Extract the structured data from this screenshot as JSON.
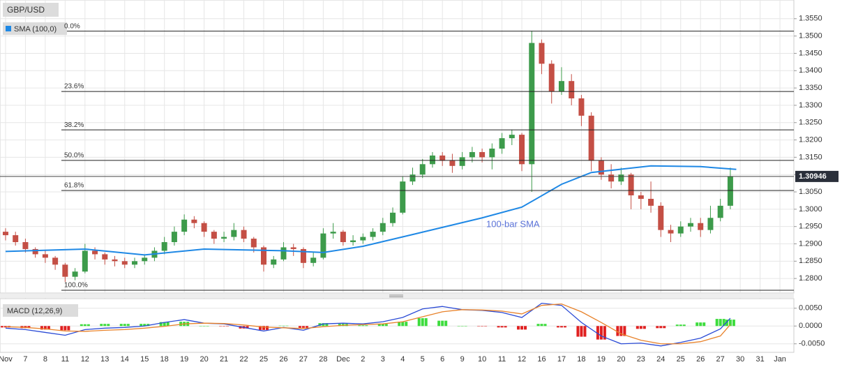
{
  "chart_data": [
    {
      "type": "candlestick",
      "title": "GBP/USD",
      "x": [
        0,
        0.5,
        1,
        1.5,
        2,
        2.5,
        3,
        3.5,
        4,
        4.5,
        5,
        5.5,
        6,
        6.5,
        7,
        7.5,
        8,
        8.5,
        9,
        9.5,
        10,
        10.5,
        11,
        11.5,
        12,
        12.5,
        13,
        13.5,
        14,
        14.5,
        15,
        15.5,
        16,
        16.5,
        17,
        17.5,
        18,
        18.5,
        19,
        19.5,
        20,
        20.5,
        21,
        21.5,
        22,
        22.5,
        23,
        23.5,
        24,
        24.5,
        25,
        25.5,
        26,
        26.5,
        27,
        27.5,
        28,
        28.5,
        29,
        29.5,
        30,
        30.5,
        31,
        31.5,
        32,
        32.5,
        33,
        33.5,
        34,
        34.5,
        35,
        35.5,
        36,
        36.5
      ],
      "open": [
        1.2935,
        1.2925,
        1.2905,
        1.2885,
        1.287,
        1.286,
        1.284,
        1.2805,
        1.282,
        1.288,
        1.287,
        1.2855,
        1.285,
        1.284,
        1.285,
        1.286,
        1.288,
        1.2905,
        1.2935,
        1.297,
        1.296,
        1.2935,
        1.2915,
        1.292,
        1.294,
        1.2915,
        1.289,
        1.284,
        1.2855,
        1.289,
        1.2885,
        1.2845,
        1.286,
        1.293,
        1.2935,
        1.2905,
        1.291,
        1.292,
        1.2935,
        1.296,
        1.299,
        1.308,
        1.31,
        1.313,
        1.3155,
        1.314,
        1.3125,
        1.315,
        1.3165,
        1.315,
        1.3175,
        1.3205,
        1.3215,
        1.313,
        1.348,
        1.342,
        1.334,
        1.337,
        1.332,
        1.327,
        1.314,
        1.31,
        1.308,
        1.31,
        1.304,
        1.303,
        1.301,
        1.294,
        1.293,
        1.295,
        1.296,
        1.294,
        1.2975,
        1.301
      ],
      "high": [
        1.2945,
        1.2935,
        1.2915,
        1.289,
        1.288,
        1.2865,
        1.2845,
        1.283,
        1.29,
        1.289,
        1.2875,
        1.2865,
        1.286,
        1.286,
        1.287,
        1.289,
        1.292,
        1.295,
        1.2985,
        1.298,
        1.2965,
        1.294,
        1.2935,
        1.296,
        1.295,
        1.292,
        1.2895,
        1.2865,
        1.2905,
        1.29,
        1.289,
        1.2875,
        1.2945,
        1.296,
        1.294,
        1.2925,
        1.293,
        1.2945,
        1.2975,
        1.3005,
        1.3095,
        1.312,
        1.3145,
        1.3165,
        1.3165,
        1.316,
        1.3165,
        1.318,
        1.3175,
        1.319,
        1.322,
        1.323,
        1.322,
        1.3515,
        1.349,
        1.343,
        1.341,
        1.339,
        1.333,
        1.328,
        1.315,
        1.313,
        1.312,
        1.3105,
        1.305,
        1.308,
        1.302,
        1.2955,
        1.2965,
        1.2975,
        1.2975,
        1.301,
        1.303,
        1.312
      ],
      "low": [
        1.291,
        1.2895,
        1.2875,
        1.286,
        1.2845,
        1.2825,
        1.279,
        1.2795,
        1.2815,
        1.2855,
        1.284,
        1.2835,
        1.283,
        1.283,
        1.284,
        1.285,
        1.287,
        1.2895,
        1.2925,
        1.2945,
        1.292,
        1.29,
        1.2905,
        1.291,
        1.2905,
        1.2875,
        1.282,
        1.283,
        1.285,
        1.2865,
        1.283,
        1.2835,
        1.2855,
        1.2915,
        1.2895,
        1.2895,
        1.29,
        1.291,
        1.2925,
        1.295,
        1.2985,
        1.307,
        1.309,
        1.312,
        1.3125,
        1.3105,
        1.3115,
        1.3135,
        1.3135,
        1.3115,
        1.316,
        1.3185,
        1.311,
        1.305,
        1.339,
        1.3305,
        1.333,
        1.33,
        1.324,
        1.311,
        1.3085,
        1.306,
        1.307,
        1.3,
        1.3,
        1.299,
        1.292,
        1.2905,
        1.292,
        1.2935,
        1.292,
        1.293,
        1.2965,
        1.3
      ],
      "close": [
        1.2925,
        1.2905,
        1.2885,
        1.287,
        1.286,
        1.284,
        1.2805,
        1.282,
        1.288,
        1.287,
        1.2855,
        1.285,
        1.284,
        1.285,
        1.286,
        1.288,
        1.2905,
        1.2935,
        1.297,
        1.296,
        1.2935,
        1.2915,
        1.292,
        1.294,
        1.2915,
        1.289,
        1.284,
        1.2855,
        1.289,
        1.2885,
        1.2845,
        1.286,
        1.293,
        1.2935,
        1.2905,
        1.291,
        1.292,
        1.2935,
        1.296,
        1.299,
        1.308,
        1.31,
        1.313,
        1.3155,
        1.314,
        1.3125,
        1.315,
        1.3165,
        1.315,
        1.3175,
        1.3205,
        1.3215,
        1.313,
        1.348,
        1.342,
        1.334,
        1.337,
        1.332,
        1.327,
        1.314,
        1.31,
        1.308,
        1.31,
        1.304,
        1.303,
        1.301,
        1.294,
        1.293,
        1.295,
        1.296,
        1.294,
        1.2975,
        1.301,
        1.3095
      ],
      "up_color": "#3d9b4b",
      "down_color": "#c44f45",
      "series": [
        {
          "name": "SMA (100,0)",
          "color": "#1e88e5",
          "x": [
            0,
            4,
            7,
            10,
            14,
            16,
            18,
            20.5,
            24,
            26,
            28,
            29.5,
            32.5,
            35,
            36.8
          ],
          "values": [
            1.2878,
            1.2885,
            1.2868,
            1.2885,
            1.288,
            1.2875,
            1.2893,
            1.2927,
            1.2975,
            1.3006,
            1.3072,
            1.3106,
            1.3125,
            1.3123,
            1.3115
          ]
        }
      ],
      "annotation": "100-bar SMA",
      "fib_levels": [
        {
          "label": "0.0%",
          "value": 1.3514
        },
        {
          "label": "23.6%",
          "value": 1.334
        },
        {
          "label": "38.2%",
          "value": 1.3229
        },
        {
          "label": "50.0%",
          "value": 1.3141
        },
        {
          "label": "61.8%",
          "value": 1.3054
        },
        {
          "label": "100.0%",
          "value": 1.2766
        }
      ],
      "last_price": 1.30946,
      "xlim": [
        -0.28,
        39.7
      ],
      "ylim": [
        1.2758,
        1.3604
      ],
      "yticks": [
        {
          "value": 1.28,
          "label": "1.2800"
        },
        {
          "value": 1.285,
          "label": "1.2850"
        },
        {
          "value": 1.29,
          "label": "1.2900"
        },
        {
          "value": 1.295,
          "label": "1.2950"
        },
        {
          "value": 1.3,
          "label": "1.3000"
        },
        {
          "value": 1.305,
          "label": "1.3050"
        },
        {
          "value": 1.31,
          "label": "1.3100"
        },
        {
          "value": 1.315,
          "label": "1.3150"
        },
        {
          "value": 1.32,
          "label": "1.3200"
        },
        {
          "value": 1.325,
          "label": "1.3250"
        },
        {
          "value": 1.33,
          "label": "1.3300"
        },
        {
          "value": 1.335,
          "label": "1.3350"
        },
        {
          "value": 1.34,
          "label": "1.3400"
        },
        {
          "value": 1.345,
          "label": "1.3450"
        },
        {
          "value": 1.35,
          "label": "1.3500"
        },
        {
          "value": 1.355,
          "label": "1.3550"
        }
      ],
      "grid": true
    },
    {
      "type": "macd",
      "title": "MACD (12,26,9)",
      "x": [
        0,
        1,
        2,
        3,
        4,
        5,
        6,
        7,
        8,
        9,
        10,
        11,
        12,
        13,
        14,
        15,
        16,
        17,
        18,
        19,
        20,
        21,
        22,
        23,
        24,
        25,
        26,
        27,
        28,
        29,
        30,
        31,
        32,
        33,
        34,
        35,
        36,
        36.5
      ],
      "series": [
        {
          "name": "MACD",
          "color": "#2b4bd6",
          "values": [
            -0.0006,
            -0.001,
            -0.0018,
            -0.0026,
            -0.001,
            -0.0006,
            -0.0004,
            0,
            0.001,
            0.0018,
            0.0008,
            0.0006,
            -0.0004,
            -0.0014,
            -0.0004,
            -0.0012,
            0.0006,
            0.0008,
            0.0006,
            0.0012,
            0.0024,
            0.0048,
            0.0055,
            0.0046,
            0.0044,
            0.0038,
            0.0024,
            0.0064,
            0.0058,
            0.001,
            -0.0028,
            -0.005,
            -0.0048,
            -0.0056,
            -0.0046,
            -0.0034,
            -0.0008,
            0.0022
          ]
        },
        {
          "name": "Signal",
          "color": "#e8822a",
          "values": [
            -0.0002,
            -0.0004,
            -0.0008,
            -0.0014,
            -0.0015,
            -0.0012,
            -0.001,
            -0.0006,
            -0.0001,
            0.0006,
            0.0008,
            0.0007,
            0.0003,
            -0.0003,
            -0.0005,
            -0.0007,
            -0.0002,
            0.0002,
            0.0004,
            0.0006,
            0.0012,
            0.0026,
            0.004,
            0.0046,
            0.0045,
            0.0042,
            0.0034,
            0.0058,
            0.0062,
            0.004,
            0.001,
            -0.0022,
            -0.004,
            -0.005,
            -0.005,
            -0.0044,
            -0.0028,
            0.0004
          ]
        }
      ],
      "histogram": [
        -0.0004,
        -0.0006,
        -0.001,
        -0.0012,
        0.0005,
        0.0006,
        0.0006,
        0.0006,
        0.0011,
        0.0012,
        0,
        -0.0001,
        -0.0007,
        -0.0011,
        0.0001,
        -0.0005,
        0.0008,
        0.0006,
        0.0002,
        0.0006,
        0.0012,
        0.0022,
        0.0015,
        0,
        -0.0001,
        -0.0004,
        -0.001,
        0.0006,
        -0.0004,
        -0.003,
        -0.0038,
        -0.0028,
        -0.0008,
        -0.0006,
        0.0004,
        0.001,
        0.002,
        0.0018
      ],
      "up_color": "#3ddc3d",
      "down_color": "#e02020",
      "xlim": [
        -0.28,
        39.7
      ],
      "ylim": [
        -0.0074,
        0.0077
      ],
      "yticks": [
        {
          "value": 0.005,
          "label": "0.0050"
        },
        {
          "value": 0,
          "label": "0.0000"
        },
        {
          "value": -0.005,
          "label": "-0.0050"
        }
      ],
      "xticks": [
        {
          "value": 0,
          "label": "Nov"
        },
        {
          "value": 1,
          "label": "7"
        },
        {
          "value": 2,
          "label": "8"
        },
        {
          "value": 3,
          "label": "11"
        },
        {
          "value": 4,
          "label": "12"
        },
        {
          "value": 5,
          "label": "13"
        },
        {
          "value": 6,
          "label": "14"
        },
        {
          "value": 7,
          "label": "15"
        },
        {
          "value": 8,
          "label": "18"
        },
        {
          "value": 9,
          "label": "19"
        },
        {
          "value": 10,
          "label": "20"
        },
        {
          "value": 11,
          "label": "21"
        },
        {
          "value": 12,
          "label": "22"
        },
        {
          "value": 13,
          "label": "25"
        },
        {
          "value": 14,
          "label": "26"
        },
        {
          "value": 15,
          "label": "27"
        },
        {
          "value": 16,
          "label": "28"
        },
        {
          "value": 17,
          "label": "Dec"
        },
        {
          "value": 18,
          "label": "2"
        },
        {
          "value": 19,
          "label": "3"
        },
        {
          "value": 20,
          "label": "4"
        },
        {
          "value": 21,
          "label": "5"
        },
        {
          "value": 22,
          "label": "6"
        },
        {
          "value": 23,
          "label": "9"
        },
        {
          "value": 24,
          "label": "10"
        },
        {
          "value": 25,
          "label": "11"
        },
        {
          "value": 26,
          "label": "12"
        },
        {
          "value": 27,
          "label": "16"
        },
        {
          "value": 28,
          "label": "17"
        },
        {
          "value": 29,
          "label": "18"
        },
        {
          "value": 30,
          "label": "19"
        },
        {
          "value": 31,
          "label": "20"
        },
        {
          "value": 32,
          "label": "23"
        },
        {
          "value": 33,
          "label": "24"
        },
        {
          "value": 34,
          "label": "25"
        },
        {
          "value": 35,
          "label": "26"
        },
        {
          "value": 36,
          "label": "27"
        },
        {
          "value": 37,
          "label": "30"
        },
        {
          "value": 38,
          "label": "31"
        },
        {
          "value": 39,
          "label": "Jan"
        }
      ],
      "grid": true
    }
  ]
}
